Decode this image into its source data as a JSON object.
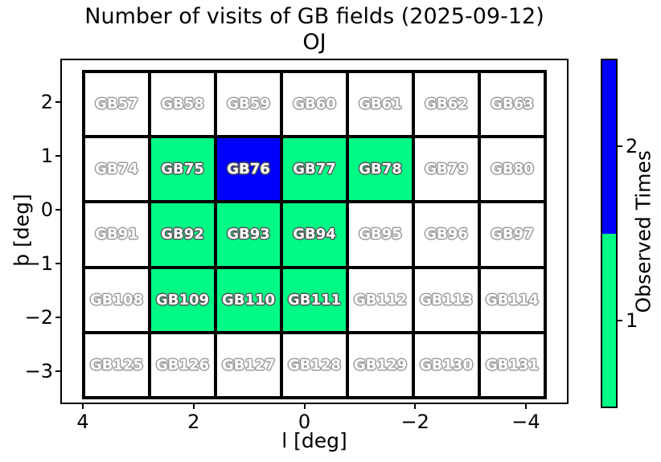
{
  "title": {
    "line1": "Number of visits of GB fields (2025-09-12)",
    "line2": "OJ"
  },
  "axes": {
    "xlabel": "l [deg]",
    "ylabel": "b [deg]",
    "xticks": [
      "4",
      "2",
      "0",
      "−2",
      "−4"
    ],
    "yticks": [
      "2",
      "1",
      "0",
      "−1",
      "−2",
      "−3"
    ]
  },
  "colorbar": {
    "label": "Observed Times",
    "segments": [
      {
        "value": 2,
        "tick": "2",
        "color": "#0000FF"
      },
      {
        "value": 1,
        "tick": "1",
        "color": "#00FA85"
      }
    ]
  },
  "chart_data": {
    "type": "heatmap",
    "title": "Number of visits of GB fields (2025-09-12)",
    "subtitle": "OJ",
    "xlabel": "l [deg]",
    "ylabel": "b [deg]",
    "x_tick_values": [
      4,
      2,
      0,
      -2,
      -4
    ],
    "y_tick_values": [
      2,
      1,
      0,
      -1,
      -2,
      -3
    ],
    "x_axis_reversed": true,
    "grid_shape": {
      "rows": 5,
      "cols": 7
    },
    "colorbar_label": "Observed Times",
    "value_colors": {
      "0": "#FFFFFF",
      "1": "#00FA85",
      "2": "#0000FF"
    },
    "rows": [
      {
        "cells": [
          {
            "field": "GB57",
            "visits": 0
          },
          {
            "field": "GB58",
            "visits": 0
          },
          {
            "field": "GB59",
            "visits": 0
          },
          {
            "field": "GB60",
            "visits": 0
          },
          {
            "field": "GB61",
            "visits": 0
          },
          {
            "field": "GB62",
            "visits": 0
          },
          {
            "field": "GB63",
            "visits": 0
          }
        ]
      },
      {
        "cells": [
          {
            "field": "GB74",
            "visits": 0
          },
          {
            "field": "GB75",
            "visits": 1
          },
          {
            "field": "GB76",
            "visits": 2
          },
          {
            "field": "GB77",
            "visits": 1
          },
          {
            "field": "GB78",
            "visits": 1
          },
          {
            "field": "GB79",
            "visits": 0
          },
          {
            "field": "GB80",
            "visits": 0
          }
        ]
      },
      {
        "cells": [
          {
            "field": "GB91",
            "visits": 0
          },
          {
            "field": "GB92",
            "visits": 1
          },
          {
            "field": "GB93",
            "visits": 1
          },
          {
            "field": "GB94",
            "visits": 1
          },
          {
            "field": "GB95",
            "visits": 0
          },
          {
            "field": "GB96",
            "visits": 0
          },
          {
            "field": "GB97",
            "visits": 0
          }
        ]
      },
      {
        "cells": [
          {
            "field": "GB108",
            "visits": 0
          },
          {
            "field": "GB109",
            "visits": 1
          },
          {
            "field": "GB110",
            "visits": 1
          },
          {
            "field": "GB111",
            "visits": 1
          },
          {
            "field": "GB112",
            "visits": 0
          },
          {
            "field": "GB113",
            "visits": 0
          },
          {
            "field": "GB114",
            "visits": 0
          }
        ]
      },
      {
        "cells": [
          {
            "field": "GB125",
            "visits": 0
          },
          {
            "field": "GB126",
            "visits": 0
          },
          {
            "field": "GB127",
            "visits": 0
          },
          {
            "field": "GB128",
            "visits": 0
          },
          {
            "field": "GB129",
            "visits": 0
          },
          {
            "field": "GB130",
            "visits": 0
          },
          {
            "field": "GB131",
            "visits": 0
          }
        ]
      }
    ]
  }
}
